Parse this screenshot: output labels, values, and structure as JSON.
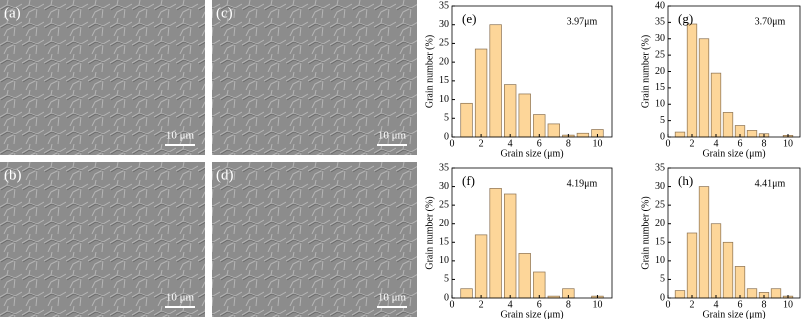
{
  "images": [
    {
      "label": "(a)",
      "scale_bar": "10 μm"
    },
    {
      "label": "(c)",
      "scale_bar": "10 μm"
    },
    {
      "label": "(b)",
      "scale_bar": "10 μm"
    },
    {
      "label": "(d)",
      "scale_bar": "10 μm"
    }
  ],
  "chart_data": [
    {
      "type": "histogram",
      "title": "(e)",
      "annotation": "3.97μm",
      "x_label": "Grain size (μm)",
      "y_label": "Grain number (%)",
      "bins": [
        0.5,
        1.5,
        2.5,
        3.5,
        4.5,
        5.5,
        6.5,
        7.5,
        8.5,
        9.5,
        10.5
      ],
      "values": [
        9,
        23.5,
        30,
        14,
        11.5,
        6,
        3.5,
        0.5,
        1,
        2
      ],
      "color": "#fdd699",
      "xlim": [
        0,
        11
      ],
      "xticks": [
        0,
        2,
        4,
        6,
        8,
        10
      ],
      "ylim": [
        0,
        35
      ],
      "yticks": [
        0,
        5,
        10,
        15,
        20,
        25,
        30,
        35
      ]
    },
    {
      "type": "histogram",
      "title": "(g)",
      "annotation": "3.70μm",
      "x_label": "Grain size (μm)",
      "y_label": "Grain number (%)",
      "bins": [
        0.5,
        1.5,
        2.5,
        3.5,
        4.5,
        5.5,
        6.5,
        7.5,
        8.5,
        9.5,
        10.5
      ],
      "values": [
        1.5,
        34.5,
        30,
        19.5,
        7.5,
        3.5,
        2,
        1,
        0,
        0.5
      ],
      "color": "#fdd699",
      "xlim": [
        0,
        11
      ],
      "xticks": [
        0,
        2,
        4,
        6,
        8,
        10
      ],
      "ylim": [
        0,
        40
      ],
      "yticks": [
        0,
        5,
        10,
        15,
        20,
        25,
        30,
        35,
        40
      ]
    },
    {
      "type": "histogram",
      "title": "(f)",
      "annotation": "4.19μm",
      "x_label": "Grain size (μm)",
      "y_label": "Grain number (%)",
      "bins": [
        0.5,
        1.5,
        2.5,
        3.5,
        4.5,
        5.5,
        6.5,
        7.5,
        8.5,
        9.5,
        10.5
      ],
      "values": [
        2.5,
        17,
        29.5,
        28,
        12,
        7,
        0.5,
        2.5,
        0,
        0.5
      ],
      "color": "#fdd699",
      "xlim": [
        0,
        11
      ],
      "xticks": [
        0,
        2,
        4,
        6,
        8,
        10
      ],
      "ylim": [
        0,
        35
      ],
      "yticks": [
        0,
        5,
        10,
        15,
        20,
        25,
        30,
        35
      ]
    },
    {
      "type": "histogram",
      "title": "(h)",
      "annotation": "4.41μm",
      "x_label": "Grain size (μm)",
      "y_label": "Grain number (%)",
      "bins": [
        0.5,
        1.5,
        2.5,
        3.5,
        4.5,
        5.5,
        6.5,
        7.5,
        8.5,
        9.5,
        10.5
      ],
      "values": [
        2,
        17.5,
        30,
        20,
        15,
        8.5,
        2.5,
        1.5,
        2.5,
        0.5
      ],
      "color": "#fdd699",
      "xlim": [
        0,
        11
      ],
      "xticks": [
        0,
        2,
        4,
        6,
        8,
        10
      ],
      "ylim": [
        0,
        35
      ],
      "yticks": [
        0,
        5,
        10,
        15,
        20,
        25,
        30,
        35
      ]
    }
  ]
}
